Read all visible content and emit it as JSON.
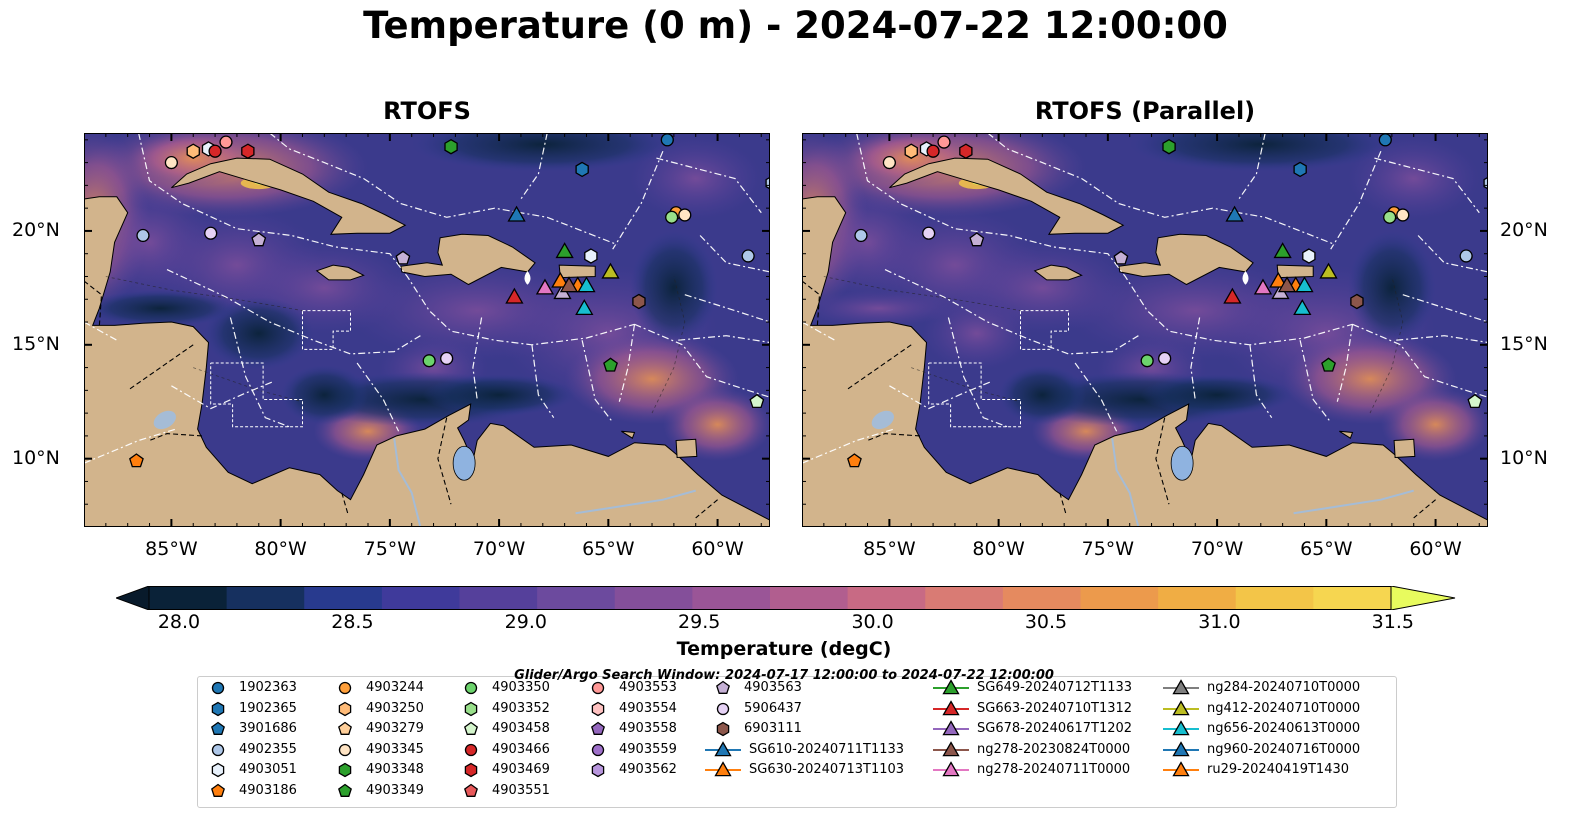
{
  "title": "Temperature (0 m) - 2024-07-22 12:00:00",
  "panels": [
    {
      "title": "RTOFS"
    },
    {
      "title": "RTOFS (Parallel)"
    }
  ],
  "axes": {
    "x_ticks": [
      "85°W",
      "80°W",
      "75°W",
      "70°W",
      "65°W",
      "60°W"
    ],
    "y_ticks": [
      "20°N",
      "15°N",
      "10°N"
    ]
  },
  "colorbar": {
    "label": "Temperature (degC)",
    "tick_labels": [
      "28.0",
      "28.5",
      "29.0",
      "29.5",
      "30.0",
      "30.5",
      "31.0",
      "31.5"
    ],
    "colors": [
      "#0a2238",
      "#16305f",
      "#283a8e",
      "#3f3a9b",
      "#55409b",
      "#6c4a9e",
      "#844f9a",
      "#9a5597",
      "#b15e8f",
      "#c86a84",
      "#d97b74",
      "#e58a5f",
      "#ec9a4c",
      "#f0ad44",
      "#f3c548",
      "#f6d650"
    ],
    "extend_low": "#081a2b",
    "extend_high": "#e8fb5e"
  },
  "colors": {
    "land": "#d2b48c",
    "lake": "#8fb3e0",
    "river": "#a5bcd6",
    "ocean_base": "#3b3a8c"
  },
  "search_window": "Glider/Argo Search Window: 2024-07-17 12:00:00 to 2024-07-22 12:00:00",
  "legend": [
    {
      "label": "1902363",
      "shape": "circle",
      "color": "#1f77b4"
    },
    {
      "label": "1902365",
      "shape": "hexagon",
      "color": "#1f77b4"
    },
    {
      "label": "3901686",
      "shape": "pentagon",
      "color": "#1f77b4"
    },
    {
      "label": "4902355",
      "shape": "circle",
      "color": "#aec7e8"
    },
    {
      "label": "4903051",
      "shape": "hexagon",
      "color": "#e8f1fb"
    },
    {
      "label": "4903186",
      "shape": "pentagon",
      "color": "#ff7f0e"
    },
    {
      "label": "4903244",
      "shape": "circle",
      "color": "#ff9f3a"
    },
    {
      "label": "4903250",
      "shape": "hexagon",
      "color": "#ffbb78"
    },
    {
      "label": "4903279",
      "shape": "pentagon",
      "color": "#ffcf9a"
    },
    {
      "label": "4903345",
      "shape": "circle",
      "color": "#ffe4c4"
    },
    {
      "label": "4903348",
      "shape": "hexagon",
      "color": "#2ca02c"
    },
    {
      "label": "4903349",
      "shape": "pentagon",
      "color": "#2ca02c"
    },
    {
      "label": "4903350",
      "shape": "circle",
      "color": "#6cd36c"
    },
    {
      "label": "4903352",
      "shape": "hexagon",
      "color": "#98df8a"
    },
    {
      "label": "4903458",
      "shape": "pentagon",
      "color": "#d4f5cc"
    },
    {
      "label": "4903466",
      "shape": "circle",
      "color": "#d62728"
    },
    {
      "label": "4903469",
      "shape": "hexagon",
      "color": "#d62728"
    },
    {
      "label": "4903551",
      "shape": "pentagon",
      "color": "#e8595a"
    },
    {
      "label": "4903553",
      "shape": "circle",
      "color": "#ff9896"
    },
    {
      "label": "4903554",
      "shape": "hexagon",
      "color": "#ffc2c1"
    },
    {
      "label": "4903558",
      "shape": "pentagon",
      "color": "#9467bd"
    },
    {
      "label": "4903559",
      "shape": "circle",
      "color": "#9e70c9"
    },
    {
      "label": "4903562",
      "shape": "hexagon",
      "color": "#b896dd"
    },
    {
      "label": "4903563",
      "shape": "pentagon",
      "color": "#c5b0d5"
    },
    {
      "label": "5906437",
      "shape": "circle",
      "color": "#e6d2f5"
    },
    {
      "label": "6903111",
      "shape": "hexagon",
      "color": "#8c564b"
    },
    {
      "label": "SG610-20240711T1133",
      "shape": "triangle-line",
      "color": "#1f77b4"
    },
    {
      "label": "SG630-20240713T1103",
      "shape": "triangle-line",
      "color": "#ff7f0e"
    },
    {
      "label": "SG649-20240712T1133",
      "shape": "triangle-line",
      "color": "#2ca02c"
    },
    {
      "label": "SG663-20240710T1312",
      "shape": "triangle-line",
      "color": "#d62728"
    },
    {
      "label": "SG678-20240617T1202",
      "shape": "triangle-line",
      "color": "#9467bd"
    },
    {
      "label": "ng278-20230824T0000",
      "shape": "triangle-line",
      "color": "#8c564b"
    },
    {
      "label": "ng278-20240711T0000",
      "shape": "triangle-line",
      "color": "#e377c2"
    },
    {
      "label": "ng284-20240710T0000",
      "shape": "triangle-line",
      "color": "#7f7f7f"
    },
    {
      "label": "ng412-20240710T0000",
      "shape": "triangle-line",
      "color": "#bcbd22"
    },
    {
      "label": "ng656-20240613T0000",
      "shape": "triangle-line",
      "color": "#17becf"
    },
    {
      "label": "ng960-20240716T0000",
      "shape": "triangle-line",
      "color": "#1f77b4"
    },
    {
      "label": "ru29-20240419T1430",
      "shape": "triangle-line",
      "color": "#ff7f0e"
    }
  ]
}
